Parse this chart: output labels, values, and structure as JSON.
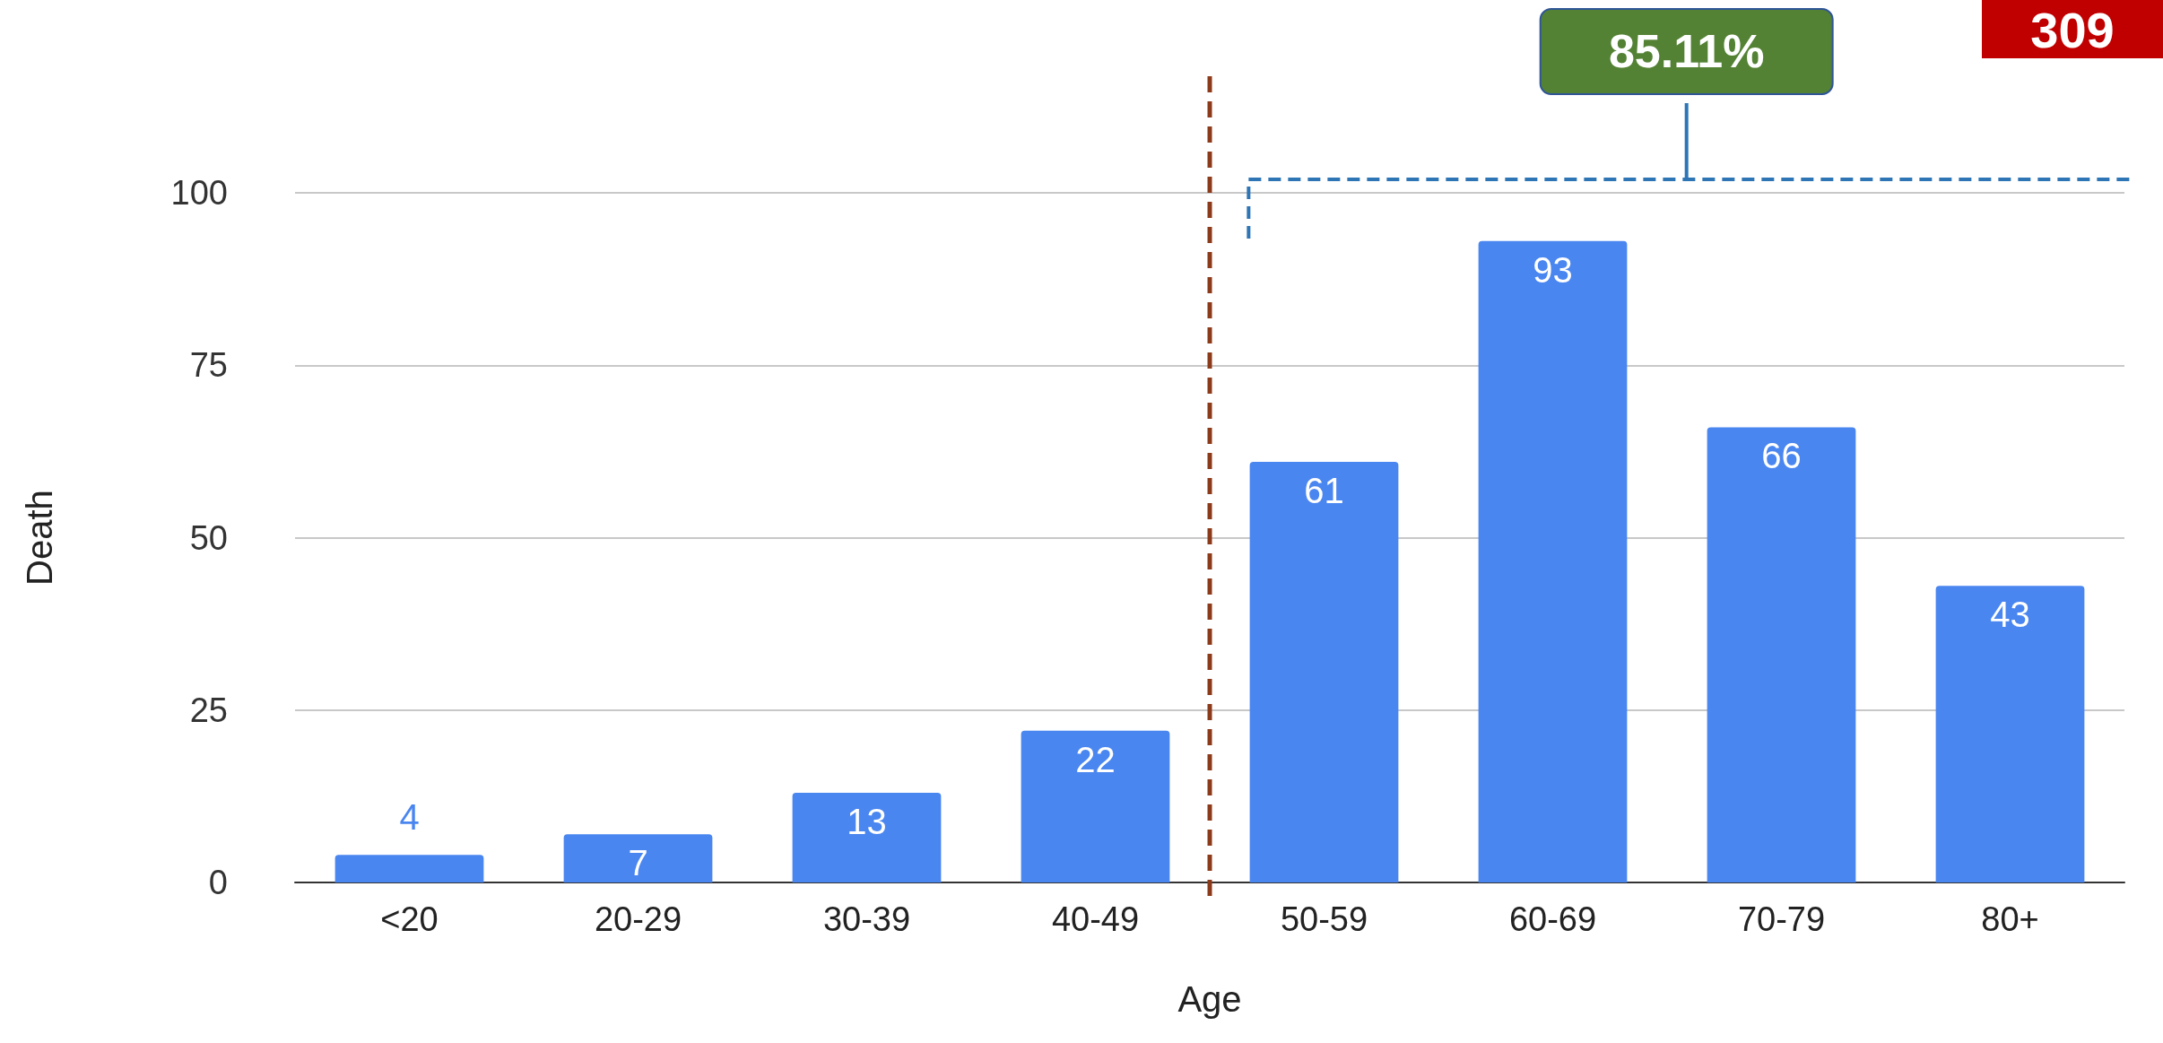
{
  "chart_data": {
    "type": "bar",
    "xlabel": "Age",
    "ylabel": "Death",
    "categories": [
      "<20",
      "20-29",
      "30-39",
      "40-49",
      "50-59",
      "60-69",
      "70-79",
      "80+"
    ],
    "values": [
      4,
      7,
      13,
      22,
      61,
      93,
      66,
      43
    ],
    "color": "#4a86f0",
    "ylim": [
      0,
      100
    ],
    "yticks": [
      0,
      25,
      50,
      75,
      100
    ],
    "grid": "y",
    "data_labels": true,
    "annotations": [
      "85.11%",
      "309"
    ]
  }
}
